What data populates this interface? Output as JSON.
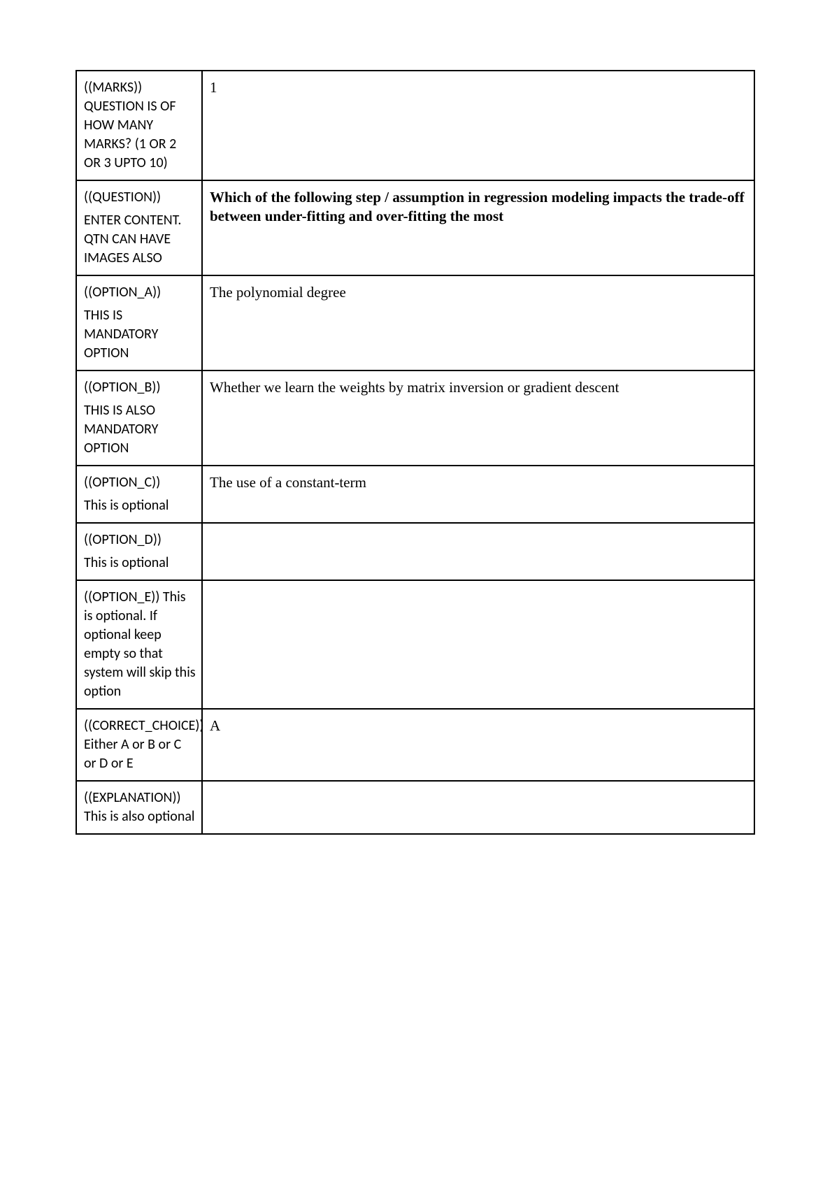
{
  "rows": {
    "marks": {
      "label_line1": "((MARKS))",
      "label_line2": "QUESTION IS OF HOW MANY MARKS? (1 OR 2 OR 3 UPTO 10)",
      "value": "1"
    },
    "question": {
      "label_line1": "((QUESTION))",
      "label_line2": "ENTER CONTENT. QTN CAN HAVE IMAGES ALSO",
      "value": "Which of the following step / assumption in regression modeling impacts the trade-off between under-fitting and over-fitting the most"
    },
    "option_a": {
      "label_line1": "((OPTION_A))",
      "label_line2": "THIS IS MANDATORY OPTION",
      "value": "The polynomial degree"
    },
    "option_b": {
      "label_line1": "((OPTION_B))",
      "label_line2": "THIS IS ALSO MANDATORY OPTION",
      "value": " Whether we learn the weights by matrix inversion or gradient descent"
    },
    "option_c": {
      "label_line1": "((OPTION_C))",
      "label_line2": "This is optional",
      "value": "The use of a constant-term"
    },
    "option_d": {
      "label_line1": "((OPTION_D))",
      "label_line2": "This is optional",
      "value": ""
    },
    "option_e": {
      "label_line1": "((OPTION_E)) This is optional. If optional keep empty so that system will skip this option",
      "value": ""
    },
    "correct": {
      "label_line1": "((CORRECT_CHOICE)) Either A or B or C or D or E",
      "value": "A"
    },
    "explanation": {
      "label_line1": "((EXPLANATION)) This is also optional",
      "value": ""
    }
  }
}
